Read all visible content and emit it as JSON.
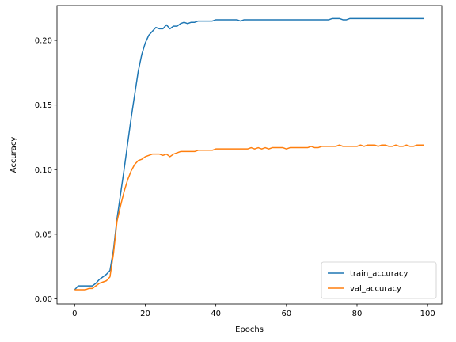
{
  "chart_data": {
    "type": "line",
    "xlabel": "Epochs",
    "ylabel": "Accuracy",
    "xlim": [
      -5,
      104
    ],
    "ylim": [
      -0.004,
      0.227
    ],
    "xticks": [
      0,
      20,
      40,
      60,
      80,
      100
    ],
    "xtick_labels": [
      "0",
      "20",
      "40",
      "60",
      "80",
      "100"
    ],
    "yticks": [
      0.0,
      0.05,
      0.1,
      0.15,
      0.2
    ],
    "ytick_labels": [
      "0.00",
      "0.05",
      "0.10",
      "0.15",
      "0.20"
    ],
    "grid": false,
    "legend_position": "lower-right",
    "x": [
      0,
      1,
      2,
      3,
      4,
      5,
      6,
      7,
      8,
      9,
      10,
      11,
      12,
      13,
      14,
      15,
      16,
      17,
      18,
      19,
      20,
      21,
      22,
      23,
      24,
      25,
      26,
      27,
      28,
      29,
      30,
      31,
      32,
      33,
      34,
      35,
      36,
      37,
      38,
      39,
      40,
      41,
      42,
      43,
      44,
      45,
      46,
      47,
      48,
      49,
      50,
      51,
      52,
      53,
      54,
      55,
      56,
      57,
      58,
      59,
      60,
      61,
      62,
      63,
      64,
      65,
      66,
      67,
      68,
      69,
      70,
      71,
      72,
      73,
      74,
      75,
      76,
      77,
      78,
      79,
      80,
      81,
      82,
      83,
      84,
      85,
      86,
      87,
      88,
      89,
      90,
      91,
      92,
      93,
      94,
      95,
      96,
      97,
      98,
      99
    ],
    "series": [
      {
        "name": "train_accuracy",
        "color": "#1f77b4",
        "values": [
          0.007,
          0.01,
          0.01,
          0.01,
          0.01,
          0.01,
          0.012,
          0.015,
          0.017,
          0.019,
          0.022,
          0.038,
          0.062,
          0.081,
          0.1,
          0.12,
          0.14,
          0.158,
          0.176,
          0.189,
          0.198,
          0.204,
          0.207,
          0.21,
          0.209,
          0.209,
          0.212,
          0.209,
          0.211,
          0.211,
          0.213,
          0.214,
          0.213,
          0.214,
          0.214,
          0.215,
          0.215,
          0.215,
          0.215,
          0.215,
          0.216,
          0.216,
          0.216,
          0.216,
          0.216,
          0.216,
          0.216,
          0.215,
          0.216,
          0.216,
          0.216,
          0.216,
          0.216,
          0.216,
          0.216,
          0.216,
          0.216,
          0.216,
          0.216,
          0.216,
          0.216,
          0.216,
          0.216,
          0.216,
          0.216,
          0.216,
          0.216,
          0.216,
          0.216,
          0.216,
          0.216,
          0.216,
          0.216,
          0.217,
          0.217,
          0.217,
          0.216,
          0.216,
          0.217,
          0.217,
          0.217,
          0.217,
          0.217,
          0.217,
          0.217,
          0.217,
          0.217,
          0.217,
          0.217,
          0.217,
          0.217,
          0.217,
          0.217,
          0.217,
          0.217,
          0.217,
          0.217,
          0.217,
          0.217,
          0.217
        ]
      },
      {
        "name": "val_accuracy",
        "color": "#ff7f0e",
        "values": [
          0.007,
          0.007,
          0.007,
          0.007,
          0.008,
          0.008,
          0.01,
          0.012,
          0.013,
          0.014,
          0.017,
          0.035,
          0.06,
          0.072,
          0.083,
          0.092,
          0.099,
          0.104,
          0.107,
          0.108,
          0.11,
          0.111,
          0.112,
          0.112,
          0.112,
          0.111,
          0.112,
          0.11,
          0.112,
          0.113,
          0.114,
          0.114,
          0.114,
          0.114,
          0.114,
          0.115,
          0.115,
          0.115,
          0.115,
          0.115,
          0.116,
          0.116,
          0.116,
          0.116,
          0.116,
          0.116,
          0.116,
          0.116,
          0.116,
          0.116,
          0.117,
          0.116,
          0.117,
          0.116,
          0.117,
          0.116,
          0.117,
          0.117,
          0.117,
          0.117,
          0.116,
          0.117,
          0.117,
          0.117,
          0.117,
          0.117,
          0.117,
          0.118,
          0.117,
          0.117,
          0.118,
          0.118,
          0.118,
          0.118,
          0.118,
          0.119,
          0.118,
          0.118,
          0.118,
          0.118,
          0.118,
          0.119,
          0.118,
          0.119,
          0.119,
          0.119,
          0.118,
          0.119,
          0.119,
          0.118,
          0.118,
          0.119,
          0.118,
          0.118,
          0.119,
          0.118,
          0.118,
          0.119,
          0.119,
          0.119
        ]
      }
    ]
  }
}
